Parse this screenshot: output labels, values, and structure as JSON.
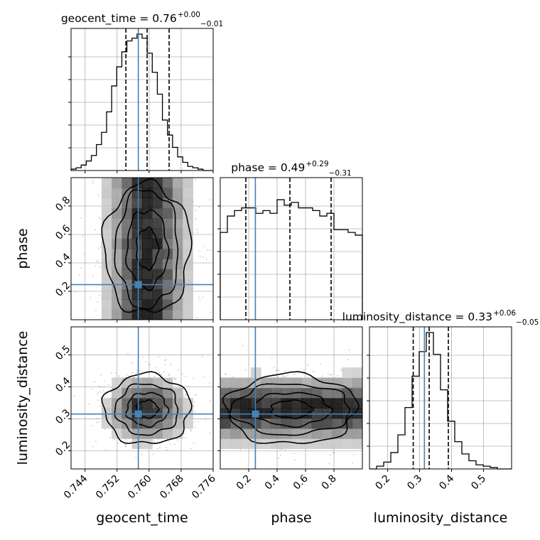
{
  "chart_data": {
    "type": "corner",
    "parameters": [
      "geocent_time",
      "phase",
      "luminosity_distance"
    ],
    "axis_labels": {
      "x": [
        "geocent_time",
        "phase",
        "luminosity_distance"
      ],
      "y": [
        "phase",
        "luminosity_distance"
      ]
    },
    "titles": [
      {
        "param": "geocent_time",
        "base": "geocent_time = 0.76",
        "plus": "+0.00",
        "minus": "−0.01"
      },
      {
        "param": "phase",
        "base": "phase = 0.49",
        "plus": "+0.29",
        "minus": "−0.31"
      },
      {
        "param": "luminosity_distance",
        "base": "luminosity_distance = 0.33",
        "plus": "+0.06",
        "minus": "−0.05"
      }
    ],
    "ranges": {
      "geocent_time": [
        0.7405,
        0.776
      ],
      "phase": [
        0.0,
        1.0
      ],
      "luminosity_distance": [
        0.143,
        0.588
      ]
    },
    "ticks": {
      "geocent_time": {
        "values": [
          0.744,
          0.752,
          0.76,
          0.768,
          0.776
        ],
        "labels": [
          "0.744",
          "0.752",
          "0.760",
          "0.768",
          "0.776"
        ]
      },
      "phase": {
        "values": [
          0.2,
          0.4,
          0.6,
          0.8
        ],
        "labels": [
          "0.2",
          "0.4",
          "0.6",
          "0.8"
        ]
      },
      "luminosity_distance": {
        "values": [
          0.2,
          0.3,
          0.4,
          0.5
        ],
        "labels": [
          "0.2",
          "0.3",
          "0.4",
          "0.5"
        ]
      }
    },
    "truths": {
      "geocent_time": 0.7573,
      "phase": 0.247,
      "luminosity_distance": 0.315
    },
    "quantiles": {
      "geocent_time": [
        0.7542,
        0.7595,
        0.765
      ],
      "phase": [
        0.18,
        0.49,
        0.78
      ],
      "luminosity_distance": [
        0.28,
        0.33,
        0.39
      ]
    },
    "histograms": {
      "geocent_time": [
        0.01,
        0.02,
        0.04,
        0.07,
        0.11,
        0.19,
        0.28,
        0.43,
        0.62,
        0.76,
        0.87,
        0.95,
        0.97,
        1.0,
        0.97,
        0.86,
        0.72,
        0.56,
        0.37,
        0.26,
        0.17,
        0.1,
        0.06,
        0.03,
        0.02,
        0.01,
        0.0,
        0.0
      ],
      "phase": [
        0.64,
        0.76,
        0.8,
        0.82,
        0.82,
        0.78,
        0.8,
        0.78,
        0.88,
        0.84,
        0.86,
        0.82,
        0.82,
        0.8,
        0.76,
        0.78,
        0.66,
        0.66,
        0.64,
        0.62
      ],
      "luminosity_distance": [
        0.0,
        0.02,
        0.05,
        0.12,
        0.25,
        0.45,
        0.68,
        0.86,
        1.0,
        0.84,
        0.58,
        0.35,
        0.2,
        0.11,
        0.06,
        0.03,
        0.02,
        0.01,
        0.0,
        0.0
      ]
    },
    "colors": {
      "truth": "#4682b4",
      "hist": "#000000",
      "grid": "#b0b0b0",
      "density_dark": "#000000",
      "density_light": "#ffffff"
    }
  }
}
